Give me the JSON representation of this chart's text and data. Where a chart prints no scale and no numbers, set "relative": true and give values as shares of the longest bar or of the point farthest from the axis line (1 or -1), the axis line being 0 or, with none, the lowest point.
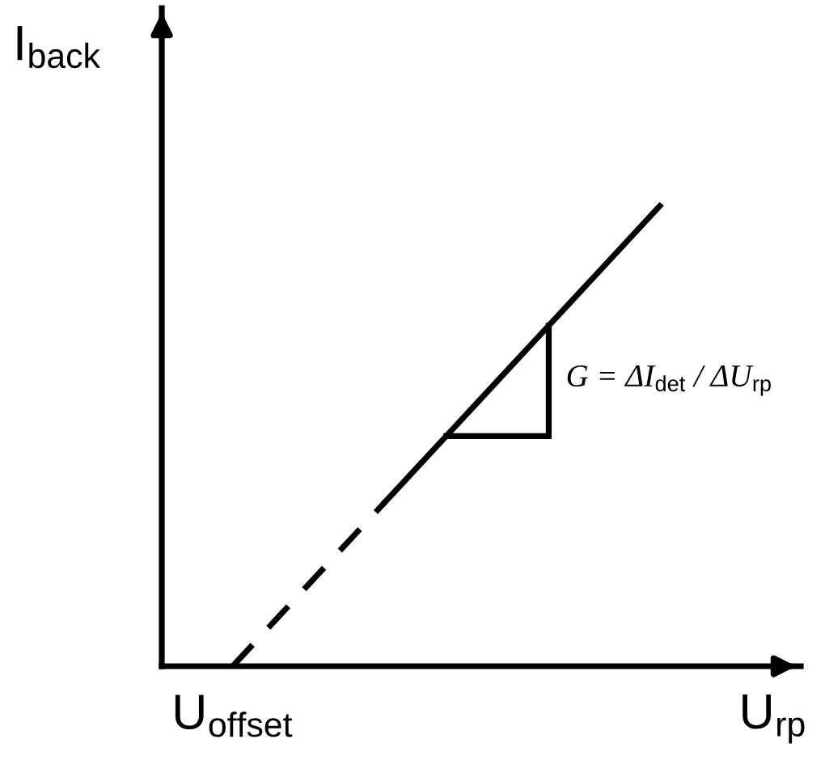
{
  "chart_data": {
    "type": "line",
    "relative": true,
    "xlabel": "U$_{rp}$",
    "ylabel": "I$_{back}$",
    "categories": [
      null,
      null,
      null,
      null,
      null,
      null,
      null,
      null,
      null,
      null,
      null,
      null,
      null,
      null,
      null
    ],
    "series": [
      {
        "color": "#000000",
        "line_style": "dashed",
        "values": [
          0,
          0.0714,
          0.1429,
          0.2143,
          0.2857,
          0.3571,
          null,
          null,
          null,
          null,
          null,
          null,
          null,
          null,
          null
        ]
      },
      {
        "color": "#000000",
        "line_style": "solid",
        "values": [
          null,
          null,
          null,
          null,
          null,
          0.3571,
          0.4286,
          0.5,
          0.5714,
          0.6429,
          0.7143,
          0.7857,
          0.8571,
          0.9286,
          1
        ]
      }
    ],
    "annotations": [
      "U$_{offset}$",
      "G = ΔI$_{det}$ / ΔU$_{rp}$"
    ]
  }
}
